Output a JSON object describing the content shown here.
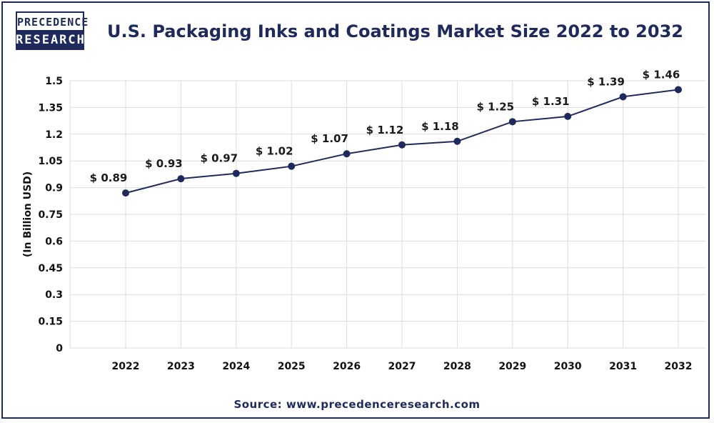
{
  "logo": {
    "line1": "PRECEDENCE",
    "line2": "RESEARCH"
  },
  "source": "Source: www.precedenceresearch.com",
  "colors": {
    "brand": "#1f2a5c",
    "line": "#1f2a5c",
    "grid": "#dcdcdc"
  },
  "chart_data": {
    "type": "line",
    "title": "U.S. Packaging Inks and Coatings Market Size 2022 to 2032",
    "xlabel": "",
    "ylabel": "(In Billion USD)",
    "categories": [
      "2022",
      "2023",
      "2024",
      "2025",
      "2026",
      "2027",
      "2028",
      "2029",
      "2030",
      "2031",
      "2032"
    ],
    "values": [
      0.89,
      0.93,
      0.97,
      1.02,
      1.07,
      1.12,
      1.18,
      1.25,
      1.31,
      1.39,
      1.46
    ],
    "data_labels": [
      "$ 0.89",
      "$ 0.93",
      "$ 0.97",
      "$ 1.02",
      "$ 1.07",
      "$ 1.12",
      "$ 1.18",
      "$ 1.25",
      "$ 1.31",
      "$ 1.39",
      "$ 1.46"
    ],
    "plotted_values": [
      0.87,
      0.95,
      0.98,
      1.02,
      1.09,
      1.14,
      1.16,
      1.27,
      1.3,
      1.41,
      1.45
    ],
    "y_ticks": [
      "0",
      "0.15",
      "0.3",
      "0.45",
      "0.6",
      "0.75",
      "0.9",
      "1.05",
      "1.2",
      "1.35",
      "1.5"
    ],
    "ylim": [
      0,
      1.5
    ],
    "grid": true
  }
}
